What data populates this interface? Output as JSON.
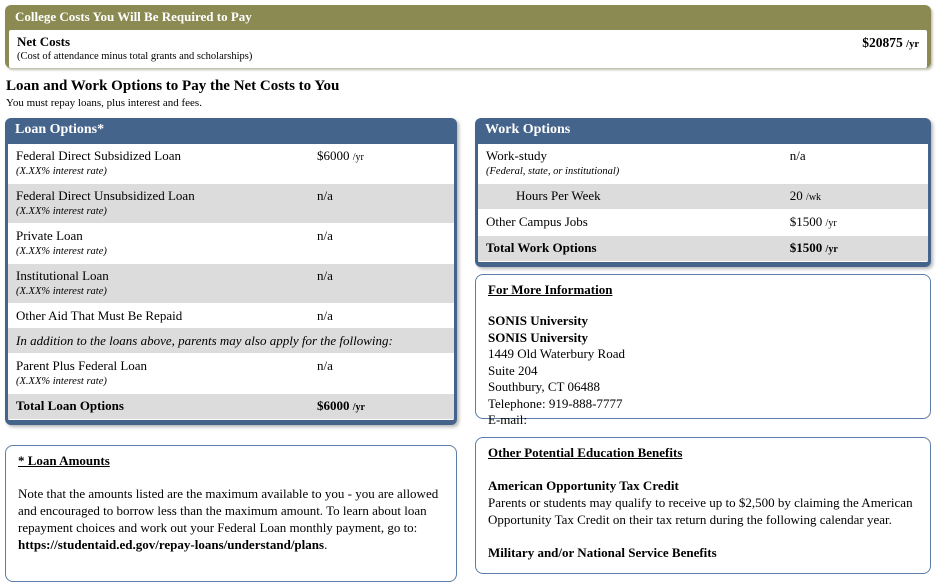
{
  "colors": {
    "olive": "#8a8a52",
    "blue": "#45648b",
    "row_gray": "#dcdcdc",
    "box_border": "#5b7da5"
  },
  "college_costs": {
    "header": "College Costs You Will Be Required to Pay",
    "row": {
      "label": "Net Costs",
      "sublabel": "(Cost of attendance minus total grants and scholarships)",
      "value": "$20875",
      "unit": "/yr"
    }
  },
  "section": {
    "title": "Loan and Work Options to Pay the Net Costs to You",
    "subtitle": "You must repay loans, plus interest and fees."
  },
  "loan_panel": {
    "header": "Loan Options*",
    "rows": [
      {
        "name": "Federal Direct Subsidized Loan",
        "sub": "(X.XX% interest rate)",
        "value": "$6000",
        "unit": "/yr"
      },
      {
        "name": "Federal Direct Unsubsidized Loan",
        "sub": "(X.XX% interest rate)",
        "value": "n/a",
        "unit": ""
      },
      {
        "name": "Private Loan",
        "sub": "(X.XX% interest rate)",
        "value": "n/a",
        "unit": ""
      },
      {
        "name": "Institutional Loan",
        "sub": "(X.XX% interest rate)",
        "value": "n/a",
        "unit": ""
      },
      {
        "name": "Other Aid That Must Be Repaid",
        "value": "n/a",
        "unit": ""
      }
    ],
    "note": "In addition to the loans above, parents may also apply for the following:",
    "parent_row": {
      "name": "Parent Plus Federal Loan",
      "sub": "(X.XX% interest rate)",
      "value": "n/a",
      "unit": ""
    },
    "total": {
      "label": "Total Loan Options",
      "value": "$6000",
      "unit": "/yr"
    }
  },
  "work_panel": {
    "header": "Work Options",
    "rows": [
      {
        "name": "Work-study",
        "sub": "(Federal, state, or institutional)",
        "value": "n/a",
        "unit": ""
      },
      {
        "name": "Hours Per Week",
        "value": "20",
        "unit": "/wk"
      },
      {
        "name": "Other Campus Jobs",
        "value": "$1500",
        "unit": "/yr"
      }
    ],
    "total": {
      "label": "Total Work Options",
      "value": "$1500",
      "unit": "/yr"
    }
  },
  "more_info": {
    "title": "For More Information",
    "lines": [
      "SONIS University",
      "SONIS University",
      "1449 Old Waterbury Road",
      "Suite 204",
      "Southbury, CT 06488",
      "Telephone: 919-888-7777",
      "E-mail:"
    ]
  },
  "loan_amounts": {
    "title": "* Loan Amounts",
    "text_before": "Note that the amounts listed are the maximum available to you - you are allowed and encouraged to borrow less than the maximum amount. To learn about loan repayment choices and work out your Federal Loan monthly payment, go to: ",
    "link": "https://studentaid.ed.gov/repay-loans/understand/plans",
    "text_after": "."
  },
  "benefits": {
    "title": "Other Potential Education Benefits",
    "aotc_heading": "American Opportunity Tax Credit",
    "aotc_text": "Parents or students may qualify to receive up to $2,500 by claiming the American Opportunity Tax Credit on their tax return during the following calendar year.",
    "military_heading": "Military and/or National Service Benefits"
  }
}
